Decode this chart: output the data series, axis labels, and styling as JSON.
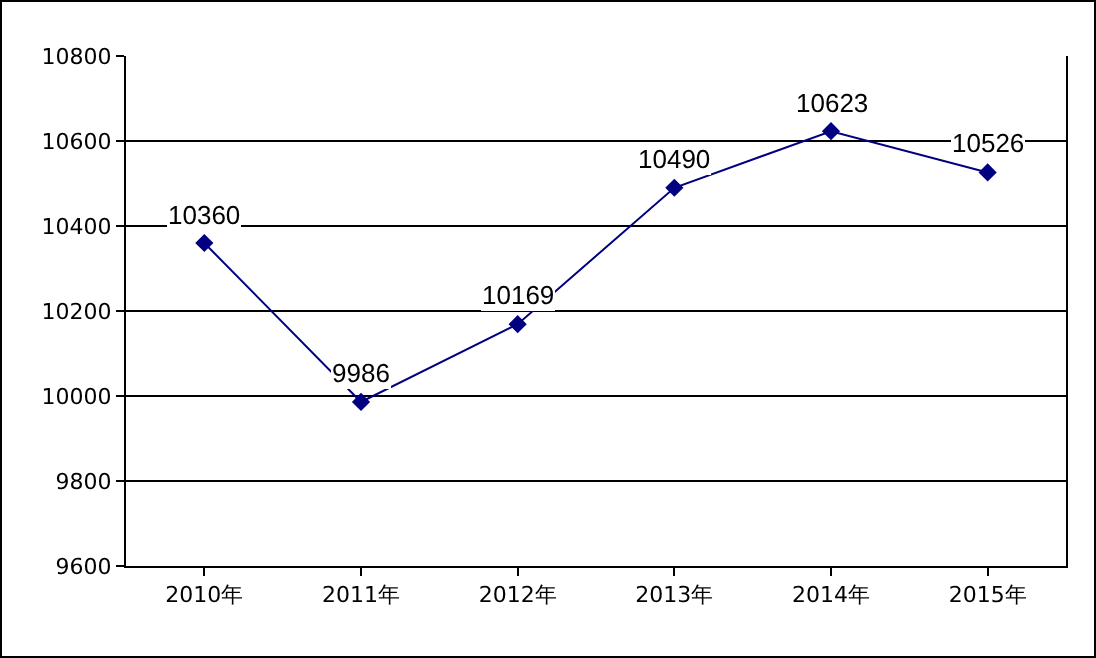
{
  "chart_data": {
    "type": "line",
    "categories": [
      "2010年",
      "2011年",
      "2012年",
      "2013年",
      "2014年",
      "2015年"
    ],
    "series": [
      {
        "color": "#000080",
        "values": [
          10360,
          9986,
          10169,
          10490,
          10623,
          10526
        ]
      }
    ],
    "ylim": [
      9600,
      10800
    ],
    "yticks": [
      9600,
      9800,
      10000,
      10200,
      10400,
      10600,
      10800
    ],
    "grid": "y",
    "legend": false,
    "marker": "diamond",
    "line_style": "solid",
    "data_labels": true
  }
}
